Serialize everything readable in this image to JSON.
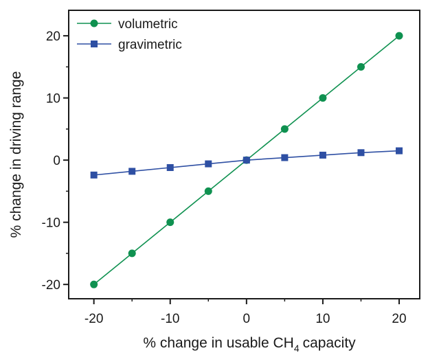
{
  "chart_data": {
    "type": "line",
    "title": "",
    "xlabel": "% change in usable CH",
    "xlabel_subscript": "4",
    "xlabel_suffix": "capacity",
    "ylabel": "% change in driving range",
    "x": [
      -20,
      -15,
      -10,
      -5,
      0,
      5,
      10,
      15,
      20
    ],
    "xlim": [
      -23.3,
      22.7
    ],
    "ylim": [
      -22.3,
      24.1
    ],
    "xticks": [
      "-20",
      "-10",
      "0",
      "10",
      "20"
    ],
    "yticks": [
      "-20",
      "-10",
      "0",
      "10",
      "20"
    ],
    "grid": false,
    "legend_position": "top-left",
    "series": [
      {
        "name": "volumetric",
        "color": "#0f9150",
        "marker": "circle",
        "values": [
          -20,
          -15,
          -10,
          -5,
          0,
          5,
          10,
          15,
          20
        ]
      },
      {
        "name": "gravimetric",
        "color": "#2e4fa3",
        "marker": "square",
        "values": [
          -2.4,
          -1.8,
          -1.2,
          -0.6,
          0,
          0.4,
          0.8,
          1.2,
          1.5
        ]
      }
    ]
  }
}
